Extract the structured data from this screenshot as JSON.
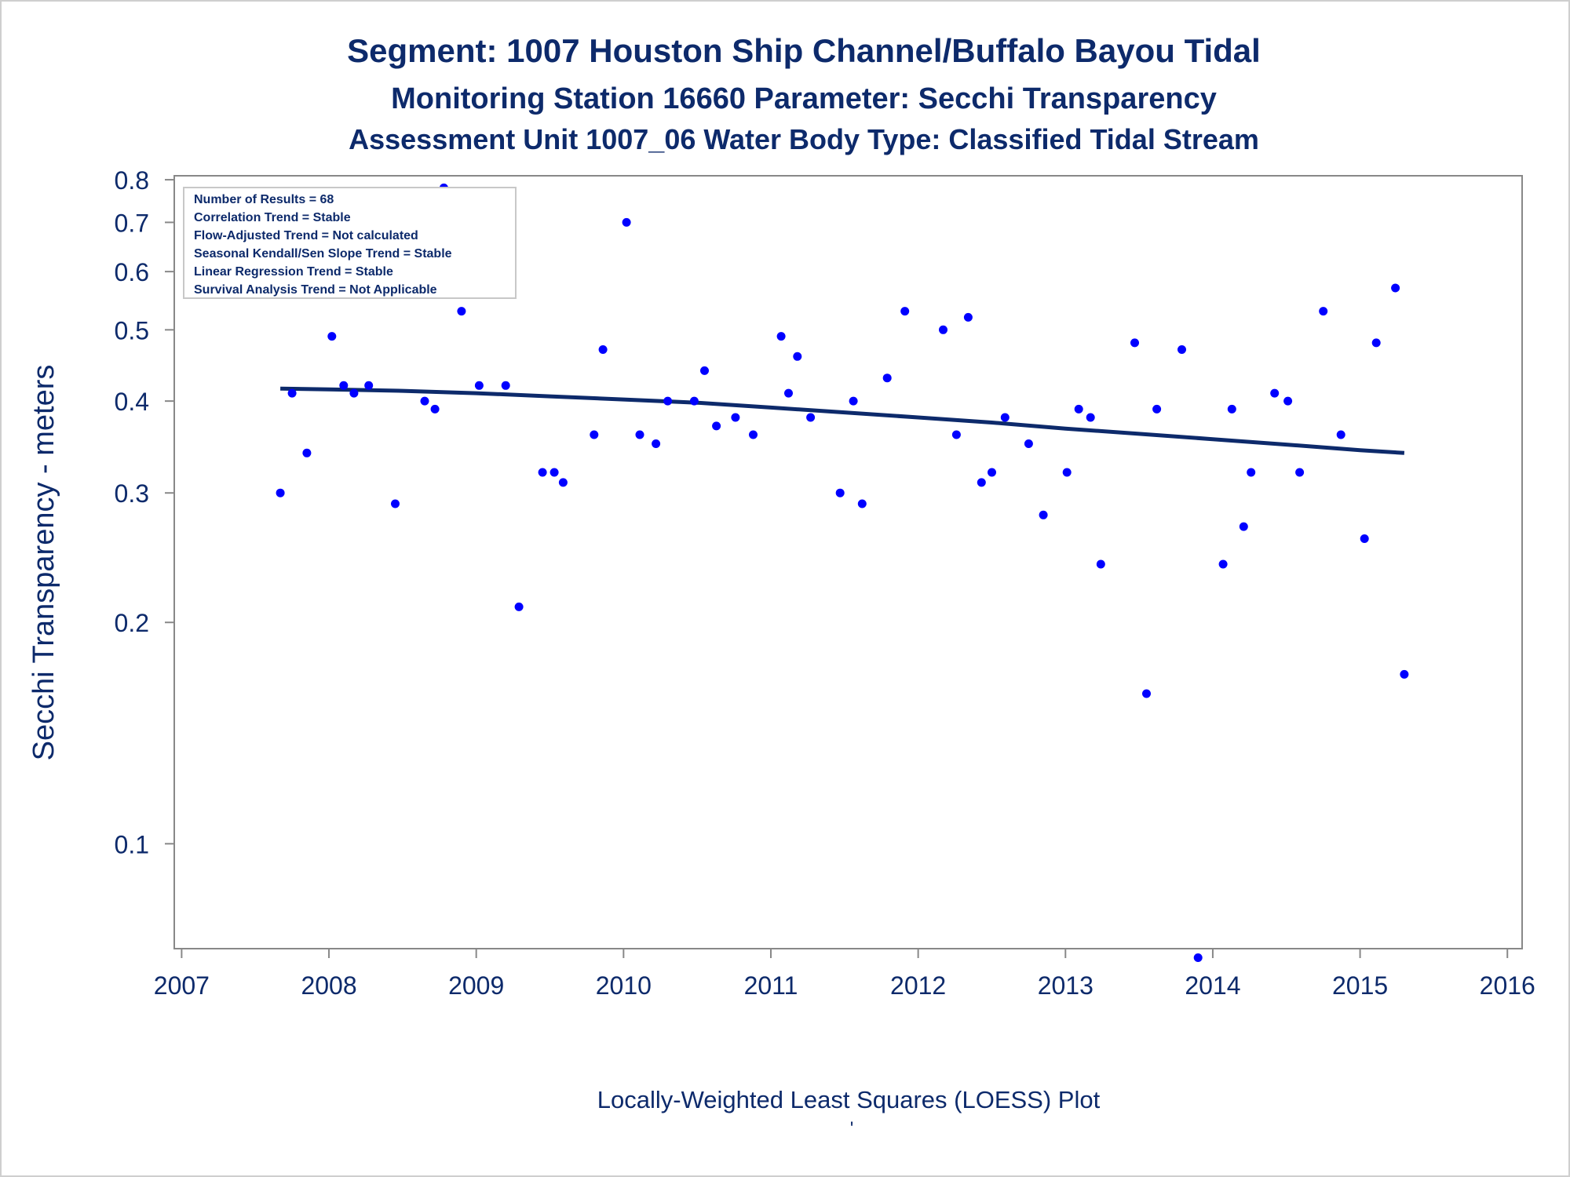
{
  "chart_data": {
    "type": "scatter",
    "title": "Segment: 1007  Houston Ship Channel/Buffalo Bayou Tidal",
    "subtitle": "Monitoring Station 16660 Parameter: Secchi Transparency",
    "subtitle2": "Assessment Unit 1007_06   Water Body Type: Classified Tidal Stream",
    "ylabel": "Secchi Transparency - meters",
    "xlabel": "Locally-Weighted Least Squares (LOESS) Plot",
    "footnote": "'",
    "yscale": "log",
    "ylim": [
      0.072,
      0.81
    ],
    "xlim": [
      2006.95,
      2016.1
    ],
    "x_ticks": [
      "2007",
      "2008",
      "2009",
      "2010",
      "2011",
      "2012",
      "2013",
      "2014",
      "2015",
      "2016"
    ],
    "y_ticks": [
      "0.1",
      "0.2",
      "0.3",
      "0.4",
      "0.5",
      "0.6",
      "0.7",
      "0.8"
    ],
    "legend": [
      "Number of Results = 68",
      "Correlation Trend = Stable",
      "Flow-Adjusted Trend = Not calculated",
      "Seasonal Kendall/Sen Slope Trend = Stable",
      "Linear Regression Trend = Stable",
      "Survival Analysis Trend = Not Applicable"
    ],
    "legend_position": "top-left",
    "grid": false,
    "colors": {
      "points": "#0000ff",
      "trend": "#0d2a6b",
      "text": "#0d2a6b",
      "axis": "#888888"
    },
    "series": [
      {
        "name": "",
        "points": [
          [
            2007.67,
            0.3
          ],
          [
            2007.75,
            0.41
          ],
          [
            2007.85,
            0.34
          ],
          [
            2008.02,
            0.49
          ],
          [
            2008.1,
            0.42
          ],
          [
            2008.17,
            0.41
          ],
          [
            2008.27,
            0.42
          ],
          [
            2008.45,
            0.29
          ],
          [
            2008.65,
            0.4
          ],
          [
            2008.72,
            0.39
          ],
          [
            2008.78,
            0.78
          ],
          [
            2008.9,
            0.53
          ],
          [
            2009.02,
            0.42
          ],
          [
            2009.2,
            0.42
          ],
          [
            2009.29,
            0.21
          ],
          [
            2009.45,
            0.32
          ],
          [
            2009.53,
            0.32
          ],
          [
            2009.59,
            0.31
          ],
          [
            2009.8,
            0.36
          ],
          [
            2009.86,
            0.47
          ],
          [
            2010.02,
            0.7
          ],
          [
            2010.11,
            0.36
          ],
          [
            2010.22,
            0.35
          ],
          [
            2010.3,
            0.4
          ],
          [
            2010.48,
            0.4
          ],
          [
            2010.55,
            0.44
          ],
          [
            2010.63,
            0.37
          ],
          [
            2010.76,
            0.38
          ],
          [
            2010.88,
            0.36
          ],
          [
            2011.07,
            0.49
          ],
          [
            2011.12,
            0.41
          ],
          [
            2011.18,
            0.46
          ],
          [
            2011.27,
            0.38
          ],
          [
            2011.47,
            0.3
          ],
          [
            2011.56,
            0.4
          ],
          [
            2011.62,
            0.29
          ],
          [
            2011.79,
            0.43
          ],
          [
            2011.91,
            0.53
          ],
          [
            2012.17,
            0.5
          ],
          [
            2012.26,
            0.36
          ],
          [
            2012.34,
            0.52
          ],
          [
            2012.43,
            0.31
          ],
          [
            2012.5,
            0.32
          ],
          [
            2012.59,
            0.38
          ],
          [
            2012.75,
            0.35
          ],
          [
            2012.85,
            0.28
          ],
          [
            2013.01,
            0.32
          ],
          [
            2013.09,
            0.39
          ],
          [
            2013.17,
            0.38
          ],
          [
            2013.24,
            0.24
          ],
          [
            2013.47,
            0.48
          ],
          [
            2013.55,
            0.16
          ],
          [
            2013.62,
            0.39
          ],
          [
            2013.79,
            0.47
          ],
          [
            2013.9,
            0.07
          ],
          [
            2014.07,
            0.24
          ],
          [
            2014.13,
            0.39
          ],
          [
            2014.21,
            0.27
          ],
          [
            2014.26,
            0.32
          ],
          [
            2014.42,
            0.41
          ],
          [
            2014.51,
            0.4
          ],
          [
            2014.59,
            0.32
          ],
          [
            2014.75,
            0.53
          ],
          [
            2014.87,
            0.36
          ],
          [
            2015.03,
            0.26
          ],
          [
            2015.11,
            0.48
          ],
          [
            2015.24,
            0.57
          ],
          [
            2015.3,
            0.17
          ]
        ]
      },
      {
        "name": "",
        "line": true,
        "points": [
          [
            2007.67,
            0.416
          ],
          [
            2008.0,
            0.415
          ],
          [
            2008.5,
            0.413
          ],
          [
            2009.0,
            0.41
          ],
          [
            2009.5,
            0.406
          ],
          [
            2010.0,
            0.402
          ],
          [
            2010.5,
            0.398
          ],
          [
            2011.0,
            0.392
          ],
          [
            2011.5,
            0.386
          ],
          [
            2012.0,
            0.38
          ],
          [
            2012.5,
            0.374
          ],
          [
            2013.0,
            0.367
          ],
          [
            2013.5,
            0.361
          ],
          [
            2014.0,
            0.355
          ],
          [
            2014.5,
            0.349
          ],
          [
            2015.0,
            0.343
          ],
          [
            2015.3,
            0.34
          ]
        ]
      }
    ]
  }
}
